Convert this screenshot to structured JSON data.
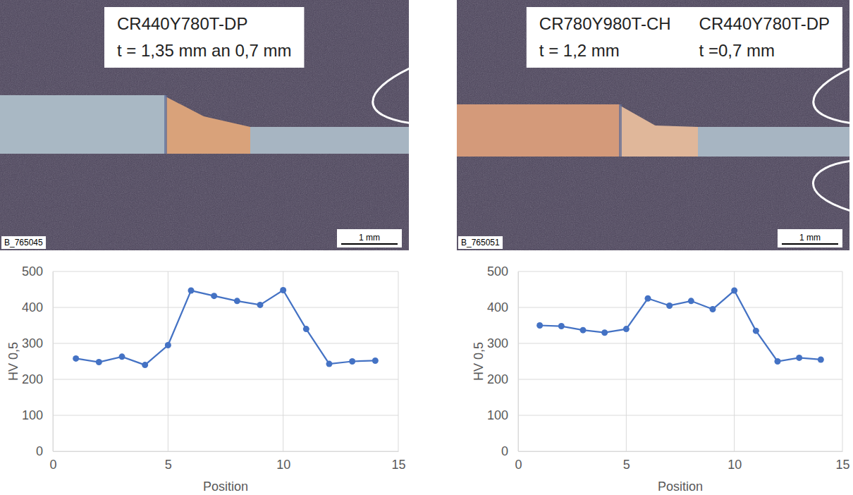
{
  "chart_data": [
    {
      "type": "line",
      "x": [
        1,
        2,
        3,
        4,
        5,
        6,
        7,
        8,
        9,
        10,
        11,
        12,
        13,
        14
      ],
      "values": [
        258,
        248,
        263,
        240,
        295,
        447,
        432,
        418,
        407,
        448,
        340,
        243,
        250,
        252
      ],
      "color": "#4472c4",
      "marker": "circle",
      "x_label": "Position",
      "y_label": "HV 0,5",
      "xlim": [
        0,
        15
      ],
      "xticks": [
        0,
        5,
        10,
        15
      ],
      "ylim": [
        0,
        500
      ],
      "yticks": [
        0,
        100,
        200,
        300,
        400,
        500
      ],
      "grid": true
    },
    {
      "type": "line",
      "x": [
        1,
        2,
        3,
        4,
        5,
        6,
        7,
        8,
        9,
        10,
        11,
        12,
        13,
        14
      ],
      "values": [
        350,
        348,
        337,
        330,
        340,
        425,
        405,
        418,
        395,
        447,
        335,
        250,
        260,
        255
      ],
      "color": "#4472c4",
      "marker": "circle",
      "x_label": "Position",
      "y_label": "HV 0,5",
      "xlim": [
        0,
        15
      ],
      "xticks": [
        0,
        5,
        10,
        15
      ],
      "ylim": [
        0,
        500
      ],
      "yticks": [
        0,
        100,
        200,
        300,
        400,
        500
      ],
      "grid": true
    }
  ],
  "images": [
    {
      "id": "B_765045",
      "scale_bar": "1 mm",
      "columns": [
        {
          "grade": "CR440Y780T-DP",
          "thickness": "t = 1,35 mm an 0,7 mm"
        }
      ]
    },
    {
      "id": "B_765051",
      "scale_bar": "1 mm",
      "columns": [
        {
          "grade": "CR780Y980T-CH",
          "thickness": "t = 1,2 mm"
        },
        {
          "grade": "CR440Y780T-DP",
          "thickness": "t =0,7 mm"
        }
      ]
    }
  ]
}
